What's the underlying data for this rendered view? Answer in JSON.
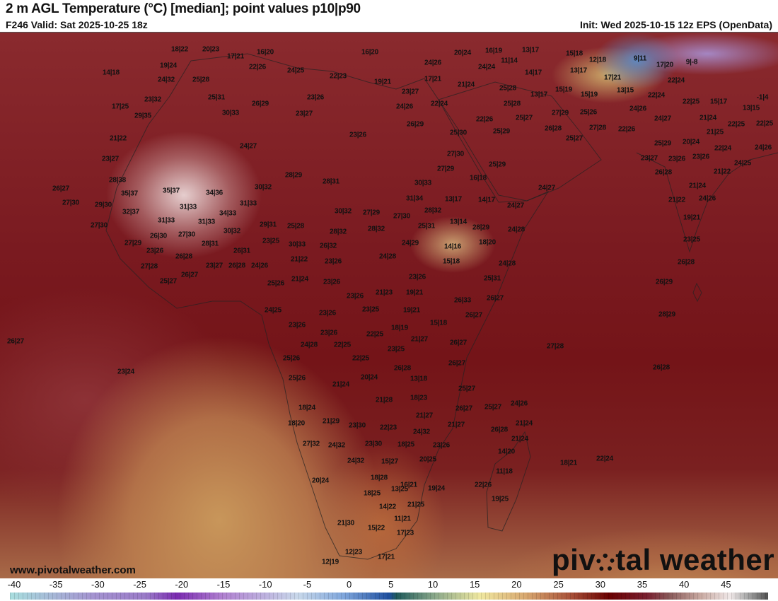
{
  "header": {
    "title": "2 m AGL Temperature (°C) [median]; point values p10|p90",
    "valid": "F246 Valid: Sat 2025-10-25 18z",
    "init": "Init: Wed 2025-10-15 12z EPS (OpenData)"
  },
  "footer": {
    "url": "www.pivotalweather.com",
    "logo": "pivotal weather"
  },
  "colorbar": {
    "unit": "°C",
    "ticks": [
      "-40",
      "-35",
      "-30",
      "-25",
      "-20",
      "-15",
      "-10",
      "-5",
      "0",
      "5",
      "10",
      "15",
      "20",
      "25",
      "30",
      "35",
      "40",
      "45"
    ],
    "colors": {
      "min": "#a8dede",
      "zero": "#1e4fa0",
      "mid": "#f0e8a0",
      "hot": "#6a0000",
      "max": "#505050"
    }
  },
  "map": {
    "point_values": [
      "18|22",
      "20|23",
      "17|21",
      "16|20",
      "16|20",
      "20|24",
      "16|19",
      "13|17",
      "15|18",
      "12|18",
      "9|11",
      "17|20",
      "9|-8",
      "14|18",
      "19|24",
      "24|32",
      "25|28",
      "22|26",
      "24|25",
      "22|23",
      "19|21",
      "24|26",
      "11|14",
      "24|24",
      "14|17",
      "13|17",
      "17|21",
      "21|24",
      "17|21",
      "22|24",
      "25|28",
      "13|17",
      "15|19",
      "15|19",
      "13|15",
      "22|24",
      "23|32",
      "25|31",
      "23|26",
      "23|27",
      "17|25",
      "26|29",
      "24|26",
      "22|24",
      "25|28",
      "22|25",
      "15|17",
      "13|15",
      "-1|4",
      "29|35",
      "30|33",
      "23|27",
      "22|26",
      "25|27",
      "27|29",
      "25|26",
      "24|26",
      "24|27",
      "21|24",
      "22|25",
      "22|25",
      "26|29",
      "25|30",
      "25|29",
      "26|28",
      "27|28",
      "22|26",
      "21|25",
      "21|22",
      "23|26",
      "25|27",
      "25|29",
      "20|24",
      "22|24",
      "24|26",
      "24|27",
      "23|27",
      "27|30",
      "25|29",
      "23|27",
      "23|26",
      "23|26",
      "24|25",
      "27|29",
      "28|29",
      "28|31",
      "28|38",
      "16|18",
      "26|28",
      "21|22",
      "26|27",
      "35|37",
      "34|36",
      "30|32",
      "30|33",
      "24|27",
      "21|24",
      "35|37",
      "27|30",
      "29|30",
      "31|33",
      "31|33",
      "31|34",
      "13|17",
      "14|17",
      "24|27",
      "21|22",
      "24|26",
      "32|37",
      "34|33",
      "30|32",
      "27|29",
      "28|32",
      "27|30",
      "31|33",
      "31|33",
      "13|14",
      "19|21",
      "27|30",
      "29|31",
      "25|28",
      "28|32",
      "28|32",
      "25|31",
      "28|29",
      "24|28",
      "30|32",
      "26|30",
      "27|30",
      "23|25",
      "27|29",
      "28|31",
      "30|33",
      "26|32",
      "24|29",
      "14|16",
      "18|20",
      "23|25",
      "23|26",
      "26|31",
      "26|28",
      "21|22",
      "23|26",
      "24|28",
      "15|18",
      "24|28",
      "27|28",
      "23|27",
      "26|28",
      "24|26",
      "26|28",
      "26|27",
      "23|26",
      "25|27",
      "21|24",
      "23|26",
      "25|31",
      "25|26",
      "26|29",
      "21|23",
      "19|21",
      "23|26",
      "26|33",
      "26|27",
      "24|25",
      "23|25",
      "19|21",
      "23|26",
      "28|29",
      "26|27",
      "15|18",
      "23|26",
      "18|19",
      "23|26",
      "22|25",
      "21|27",
      "24|28",
      "22|25",
      "26|27",
      "26|27",
      "23|25",
      "27|28",
      "25|26",
      "22|25",
      "26|27",
      "23|24",
      "26|28",
      "26|28",
      "25|26",
      "20|24",
      "13|18",
      "21|24",
      "25|27",
      "21|28",
      "18|23",
      "26|27",
      "25|27",
      "24|26",
      "18|24",
      "21|29",
      "18|20",
      "21|27",
      "23|30",
      "22|23",
      "24|32",
      "21|27",
      "21|24",
      "26|28",
      "21|24",
      "27|32",
      "24|32",
      "23|30",
      "18|25",
      "23|26",
      "24|32",
      "15|27",
      "20|25",
      "14|20",
      "22|24",
      "18|21",
      "11|18",
      "18|28",
      "20|24",
      "16|21",
      "18|25",
      "13|25",
      "19|24",
      "22|26",
      "19|25",
      "14|22",
      "21|25",
      "11|21",
      "21|30",
      "15|22",
      "17|23",
      "12|23",
      "17|21",
      "12|19"
    ]
  }
}
